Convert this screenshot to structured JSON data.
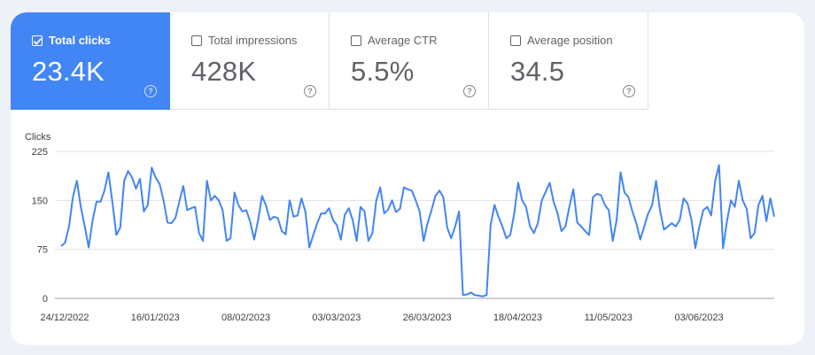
{
  "metrics": [
    {
      "label": "Total clicks",
      "value": "23.4K",
      "checked": true
    },
    {
      "label": "Total impressions",
      "value": "428K",
      "checked": false
    },
    {
      "label": "Average CTR",
      "value": "5.5%",
      "checked": false
    },
    {
      "label": "Average position",
      "value": "34.5",
      "checked": false
    }
  ],
  "help_glyph": "?",
  "colors": {
    "accent": "#4285f4",
    "line": "#4285f4",
    "grid": "#e0e0e0"
  },
  "chart_data": {
    "type": "line",
    "ylabel": "Clicks",
    "ylim": [
      0,
      225
    ],
    "yticks": [
      0,
      75,
      150,
      225
    ],
    "xtick_labels": [
      "24/12/2022",
      "16/01/2023",
      "08/02/2023",
      "03/03/2023",
      "26/03/2023",
      "18/04/2023",
      "11/05/2023",
      "03/06/2023"
    ],
    "xtick_indices": [
      0,
      23,
      46,
      69,
      92,
      115,
      138,
      161
    ],
    "grid": true,
    "series": [
      {
        "values": [
          80,
          85,
          110,
          155,
          180,
          140,
          110,
          78,
          120,
          148,
          148,
          165,
          193,
          148,
          97,
          108,
          180,
          195,
          185,
          168,
          183,
          133,
          143,
          200,
          185,
          175,
          150,
          116,
          115,
          123,
          148,
          172,
          135,
          138,
          140,
          100,
          88,
          180,
          150,
          157,
          150,
          135,
          88,
          92,
          162,
          143,
          133,
          135,
          117,
          90,
          120,
          157,
          142,
          120,
          125,
          123,
          103,
          98,
          150,
          125,
          127,
          153,
          133,
          78,
          97,
          115,
          130,
          130,
          138,
          120,
          112,
          90,
          128,
          138,
          120,
          88,
          140,
          133,
          88,
          100,
          150,
          170,
          130,
          136,
          150,
          132,
          137,
          170,
          167,
          165,
          150,
          133,
          88,
          115,
          135,
          157,
          165,
          155,
          108,
          92,
          110,
          133,
          5,
          6,
          9,
          5,
          4,
          3,
          5,
          112,
          143,
          125,
          110,
          92,
          97,
          130,
          177,
          150,
          140,
          110,
          100,
          115,
          150,
          163,
          177,
          148,
          130,
          103,
          110,
          140,
          167,
          116,
          110,
          103,
          97,
          155,
          160,
          158,
          143,
          135,
          88,
          120,
          193,
          162,
          155,
          133,
          115,
          90,
          110,
          130,
          142,
          180,
          135,
          105,
          110,
          115,
          110,
          120,
          153,
          145,
          120,
          77,
          110,
          135,
          140,
          127,
          180,
          204,
          77,
          118,
          150,
          140,
          180,
          150,
          137,
          92,
          100,
          143,
          157,
          118,
          153,
          125
        ]
      }
    ]
  }
}
